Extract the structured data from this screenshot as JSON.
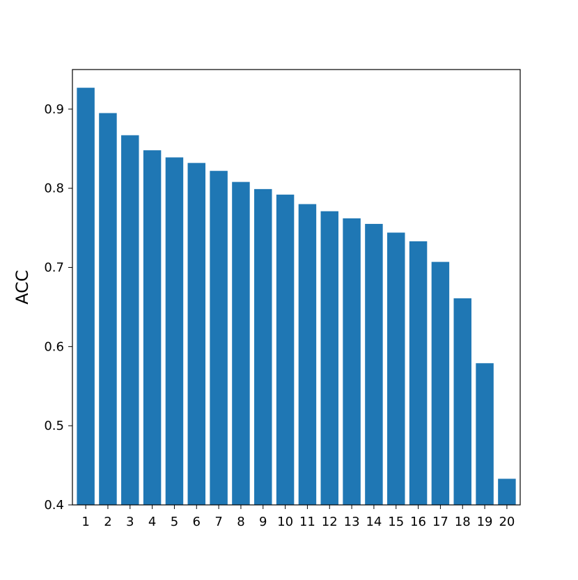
{
  "chart_data": {
    "type": "bar",
    "title": "",
    "xlabel": "",
    "ylabel": "ACC",
    "categories": [
      "1",
      "2",
      "3",
      "4",
      "5",
      "6",
      "7",
      "8",
      "9",
      "10",
      "11",
      "12",
      "13",
      "14",
      "15",
      "16",
      "17",
      "18",
      "19",
      "20"
    ],
    "values": [
      0.927,
      0.895,
      0.867,
      0.848,
      0.839,
      0.832,
      0.822,
      0.808,
      0.799,
      0.792,
      0.78,
      0.771,
      0.762,
      0.755,
      0.744,
      0.733,
      0.707,
      0.661,
      0.579,
      0.433
    ],
    "ylim": [
      0.4,
      0.95
    ],
    "yticks": [
      "0.4",
      "0.5",
      "0.6",
      "0.7",
      "0.8",
      "0.9"
    ],
    "grid": false,
    "legend": "none",
    "bar_color": "#1f77b4"
  }
}
